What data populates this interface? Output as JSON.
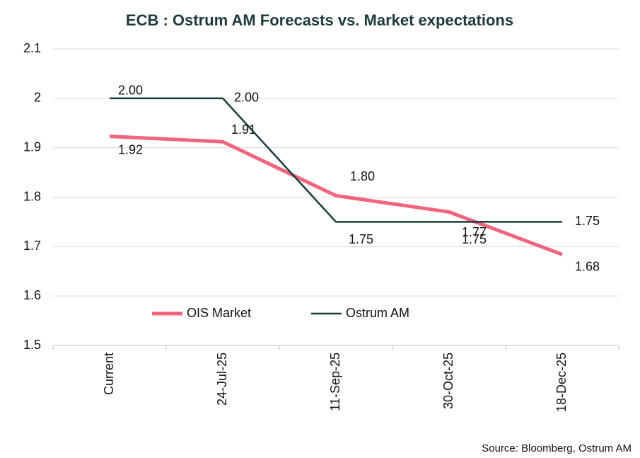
{
  "chart_data": {
    "type": "line",
    "title": "ECB :  Ostrum AM Forecasts vs. Market expectations",
    "categories": [
      "Current",
      "24-Jul-25",
      "11-Sep-25",
      "30-Oct-25",
      "18-Dec-25"
    ],
    "series": [
      {
        "name": "OIS Market",
        "color": "#f0647e",
        "values": [
          1.923,
          1.912,
          1.803,
          1.77,
          1.684
        ],
        "value_labels": [
          "1.92",
          "1.91",
          "1.80",
          "1.77",
          "1.68"
        ]
      },
      {
        "name": "Ostrum AM",
        "color": "#173a3a",
        "values": [
          2.0,
          2.0,
          1.75,
          1.75,
          1.75
        ],
        "value_labels": [
          "2.00",
          "2.00",
          "1.75",
          "1.75",
          "1.75"
        ]
      }
    ],
    "ylim": [
      1.5,
      2.1
    ],
    "yticks": [
      1.5,
      1.6,
      1.7,
      1.8,
      1.9,
      2,
      2.1
    ],
    "grid": true,
    "source": "Source: Bloomberg,  Ostrum AM"
  }
}
